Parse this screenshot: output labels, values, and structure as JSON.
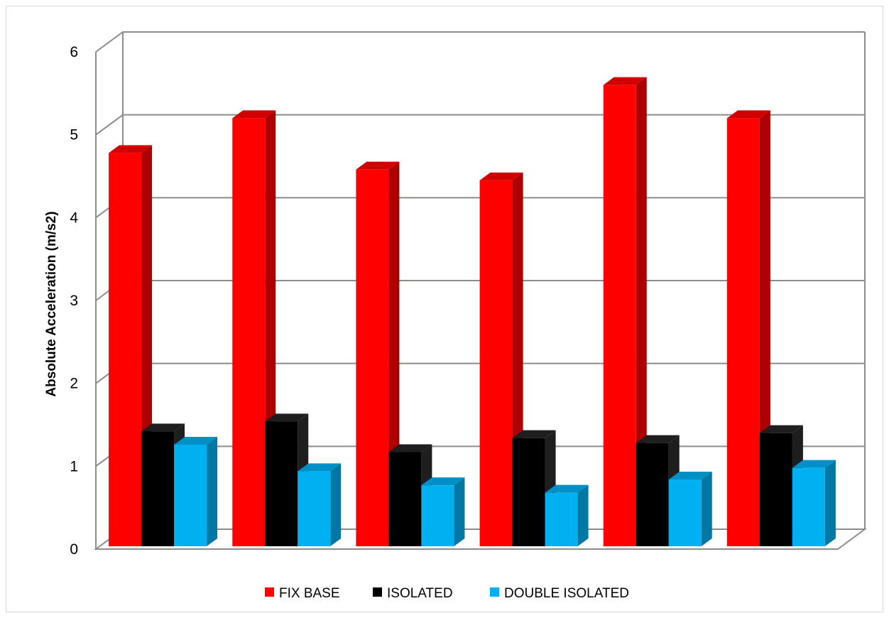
{
  "chart_data": {
    "type": "bar",
    "title": "",
    "xlabel": "",
    "ylabel": "Absolute Acceleration (m/s2)",
    "ylim": [
      0,
      6
    ],
    "yticks": [
      "0",
      "1",
      "2",
      "3",
      "4",
      "5",
      "6"
    ],
    "grid": true,
    "legend_position": "bottom",
    "categories": [
      "",
      "",
      "",
      "",
      "",
      ""
    ],
    "series": [
      {
        "name": "FIX BASE",
        "color": "#ff0000",
        "values": [
          4.78,
          5.2,
          4.58,
          4.45,
          5.6,
          5.2
        ]
      },
      {
        "name": "ISOLATED",
        "color": "#000000",
        "values": [
          1.42,
          1.54,
          1.17,
          1.34,
          1.28,
          1.4
        ]
      },
      {
        "name": "DOUBLE ISOLATED",
        "color": "#00b0f0",
        "values": [
          1.26,
          0.94,
          0.77,
          0.68,
          0.84,
          0.98
        ]
      }
    ]
  }
}
